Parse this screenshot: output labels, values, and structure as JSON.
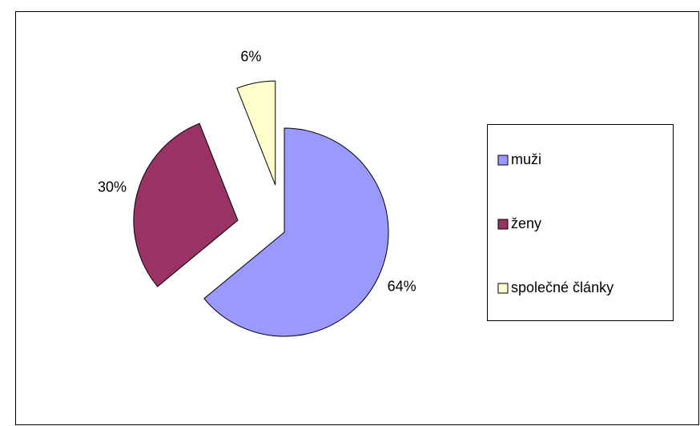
{
  "chart_data": {
    "type": "pie",
    "categories": [
      "muži",
      "ženy",
      "společné články"
    ],
    "values": [
      64,
      30,
      6
    ],
    "value_labels": [
      "64%",
      "30%",
      "6%"
    ],
    "colors": [
      "#9999ff",
      "#993366",
      "#ffffcc"
    ],
    "exploded": true,
    "legend": "right"
  }
}
